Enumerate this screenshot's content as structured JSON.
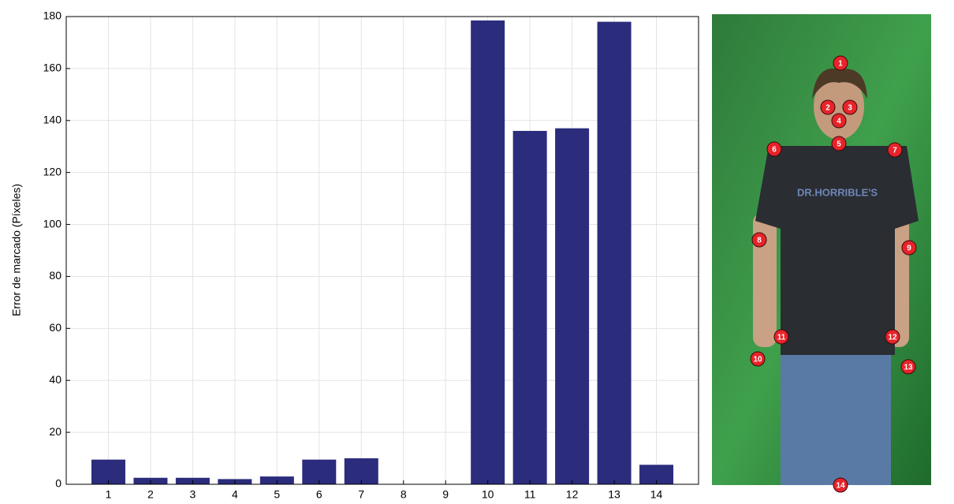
{
  "chart_data": {
    "type": "bar",
    "ylabel": "Error de marcado (Píxeles)",
    "categories": [
      "1",
      "2",
      "3",
      "4",
      "5",
      "6",
      "7",
      "8",
      "9",
      "10",
      "11",
      "12",
      "13",
      "14"
    ],
    "values": [
      9.5,
      2.5,
      2.5,
      2,
      3,
      9.5,
      10,
      0,
      0,
      178.5,
      136,
      137,
      178,
      7.5
    ],
    "color": "#2b2c7c",
    "ylim": [
      0,
      180
    ],
    "yticks": [
      0,
      20,
      40,
      60,
      80,
      100,
      120,
      140,
      160,
      180
    ],
    "grid": true
  },
  "image": {
    "markers": [
      "1",
      "2",
      "3",
      "4",
      "5",
      "6",
      "7",
      "8",
      "9",
      "10",
      "11",
      "12",
      "13",
      "14"
    ]
  }
}
